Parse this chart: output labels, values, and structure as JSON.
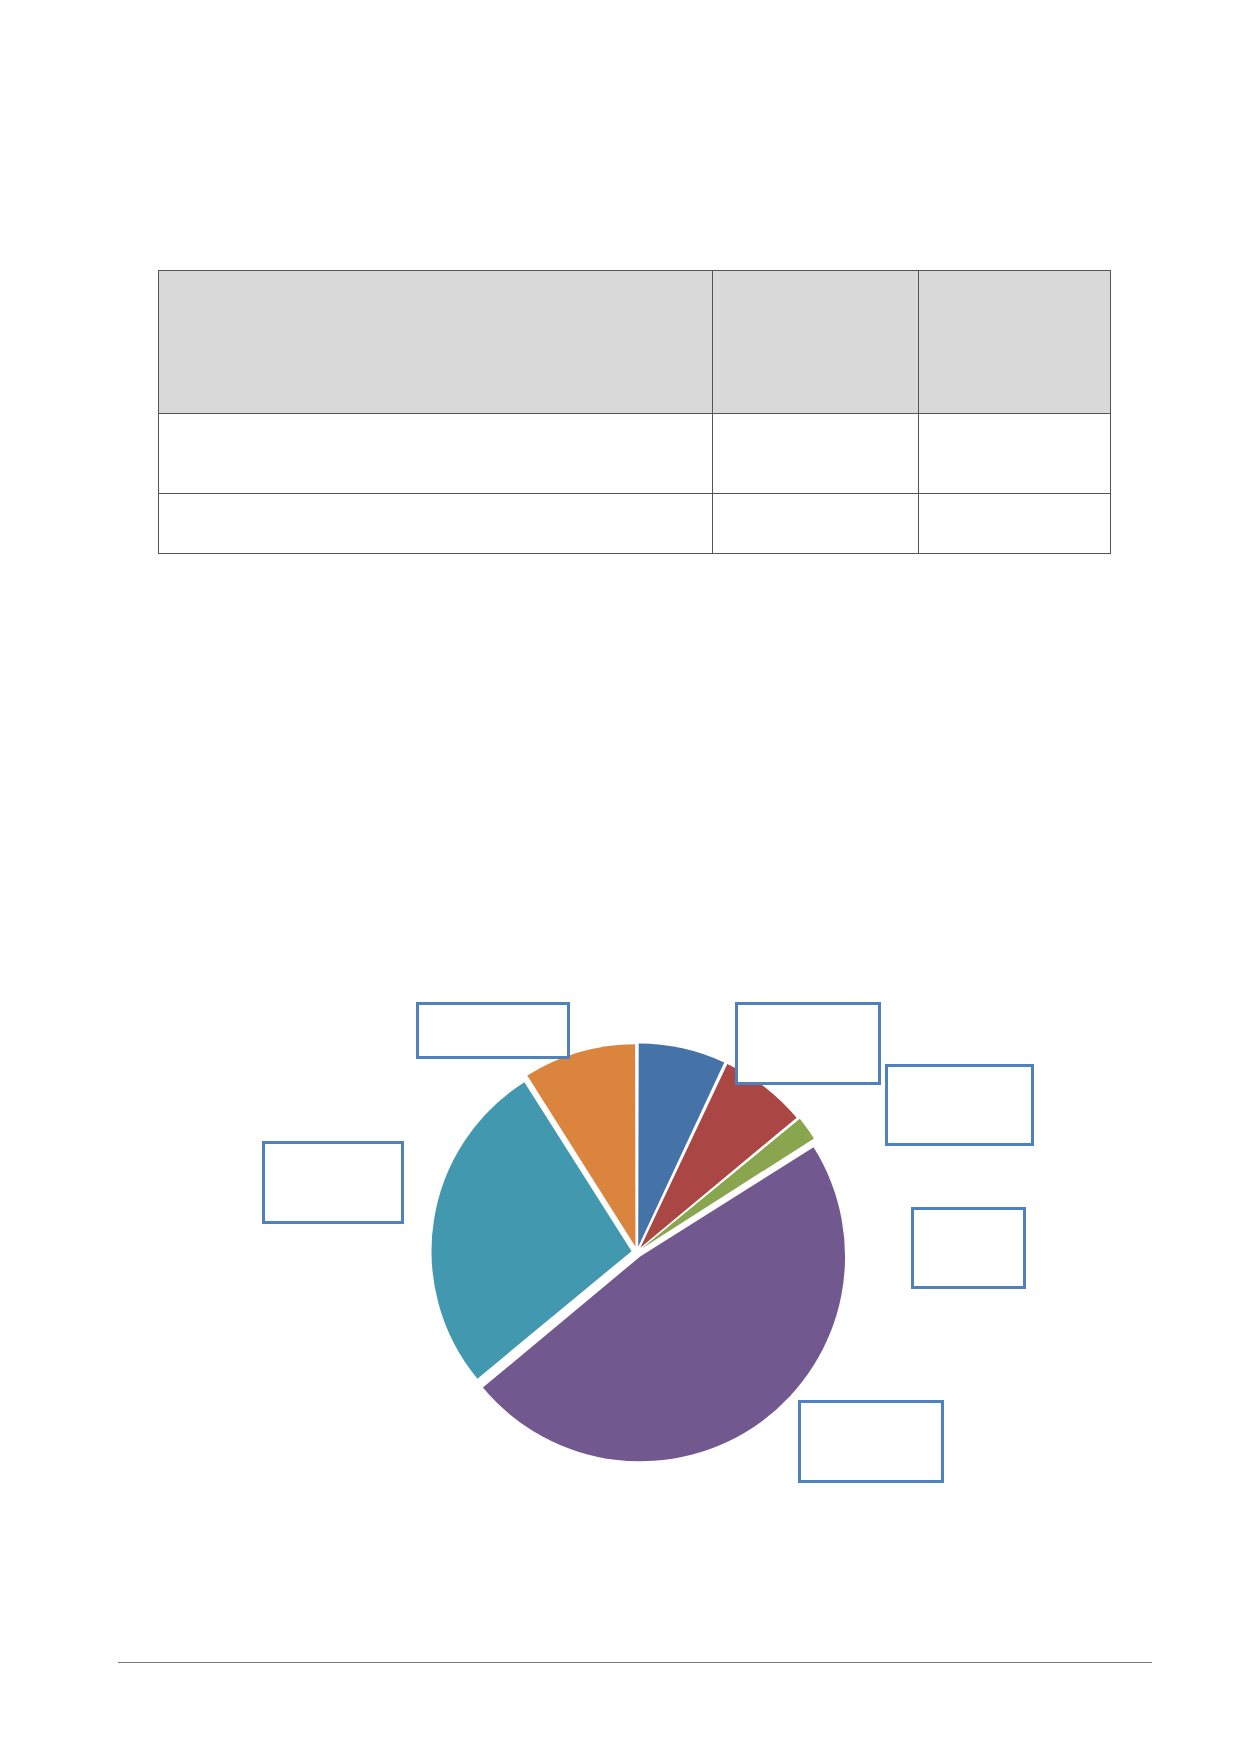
{
  "chart_data": {
    "type": "pie",
    "categories": [
      null,
      null,
      null,
      null,
      null,
      null
    ],
    "values": [
      7,
      7,
      2,
      48,
      27,
      9
    ],
    "colors": [
      "#4572a7",
      "#aa4643",
      "#89a54e",
      "#71588f",
      "#4198af",
      "#db843d"
    ]
  }
}
